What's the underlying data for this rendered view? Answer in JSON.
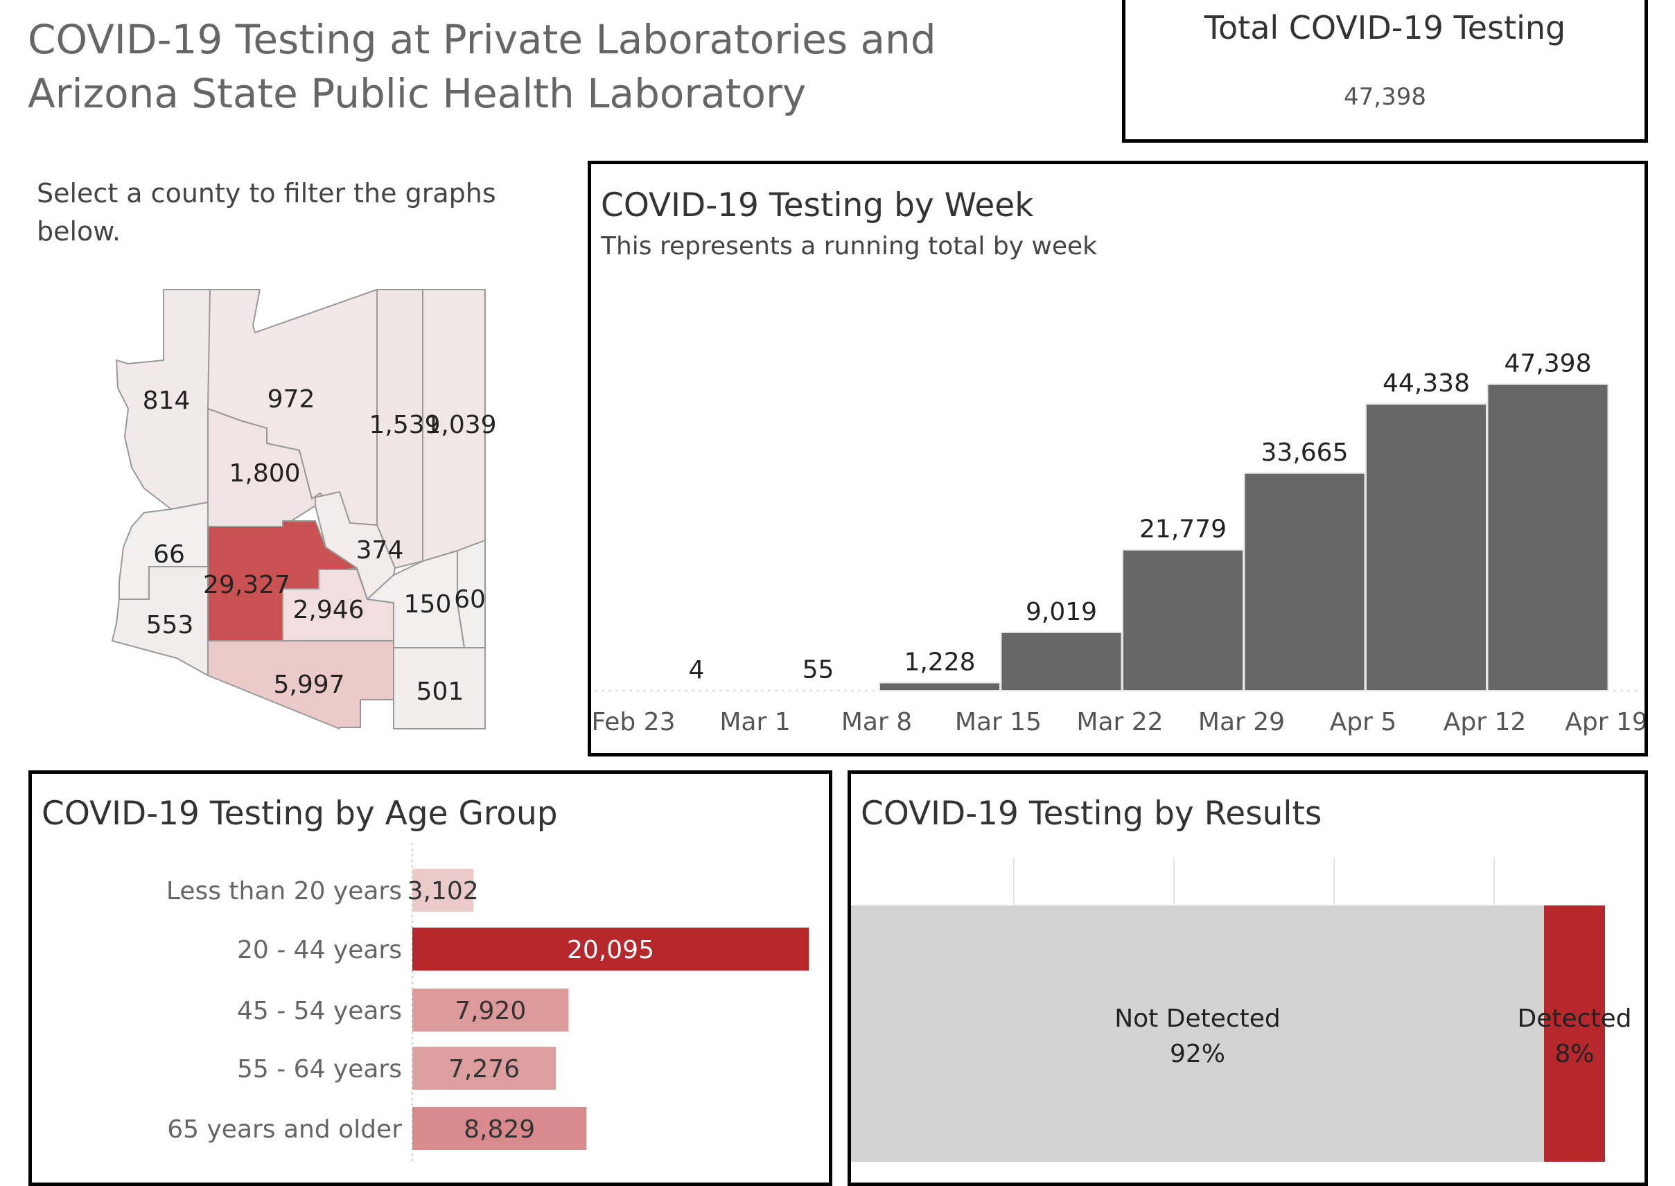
{
  "header": {
    "title": "COVID-19 Testing at Private Laboratories and Arizona State Public Health Laboratory"
  },
  "total": {
    "title": "Total COVID-19 Testing",
    "value": "47,398"
  },
  "map": {
    "instruction": "Select a county to filter the graphs below.",
    "counties": [
      {
        "value": "814",
        "color": "#f2eaea"
      },
      {
        "value": "972",
        "color": "#f1e7e7"
      },
      {
        "value": "1,539",
        "color": "#f1e6e6"
      },
      {
        "value": "1,039",
        "color": "#f1e7e7"
      },
      {
        "value": "1,800",
        "color": "#efe3e3"
      },
      {
        "value": "66",
        "color": "#f2efef"
      },
      {
        "value": "374",
        "color": "#f2ecec"
      },
      {
        "value": "29,327",
        "color": "#c95151"
      },
      {
        "value": "2,946",
        "color": "#f1dede"
      },
      {
        "value": "553",
        "color": "#f2eded"
      },
      {
        "value": "150",
        "color": "#f2efef"
      },
      {
        "value": "60",
        "color": "#f2efef"
      },
      {
        "value": "5,997",
        "color": "#ebcaca"
      },
      {
        "value": "501",
        "color": "#f2eeee"
      }
    ]
  },
  "chart_data": [
    {
      "type": "bar",
      "title": "COVID-19 Testing by Week",
      "subtitle": "This represents a running total by week",
      "categories": [
        "Feb 23",
        "Mar 1",
        "Mar 8",
        "Mar 15",
        "Mar 22",
        "Mar 29",
        "Apr 5",
        "Apr 12",
        "Apr 19"
      ],
      "bars": [
        {
          "week": "Feb 23",
          "value": 4,
          "label": "4"
        },
        {
          "week": "Mar 1",
          "value": 55,
          "label": "55"
        },
        {
          "week": "Mar 8",
          "value": 1228,
          "label": "1,228"
        },
        {
          "week": "Mar 15",
          "value": 9019,
          "label": "9,019"
        },
        {
          "week": "Mar 22",
          "value": 21779,
          "label": "21,779"
        },
        {
          "week": "Mar 29",
          "value": 33665,
          "label": "33,665"
        },
        {
          "week": "Apr 5",
          "value": 44338,
          "label": "44,338"
        },
        {
          "week": "Apr 12",
          "value": 47398,
          "label": "47,398"
        }
      ],
      "ylim": [
        0,
        50000
      ],
      "bar_color": "#666666",
      "grid": false
    },
    {
      "type": "bar",
      "orientation": "horizontal",
      "title": "COVID-19 Testing by Age Group",
      "categories": [
        "Less than 20 years",
        "20 - 44 years",
        "45 - 54 years",
        "55 - 64 years",
        "65 years and older"
      ],
      "values": [
        3102,
        20095,
        7920,
        7276,
        8829
      ],
      "labels": [
        "3,102",
        "20,095",
        "7,920",
        "7,276",
        "8,829"
      ],
      "colors": [
        "#ebcaca",
        "#b7282c",
        "#dc9a9a",
        "#dc9e9e",
        "#d98a8c"
      ],
      "label_colors": [
        "#333333",
        "#ffffff",
        "#333333",
        "#333333",
        "#333333"
      ]
    },
    {
      "type": "bar",
      "orientation": "stacked-100",
      "title": "COVID-19 Testing by Results",
      "segments": [
        {
          "name": "Not Detected",
          "percent": 92,
          "label": "92%",
          "color": "#d3d3d3"
        },
        {
          "name": "Detected",
          "percent": 8,
          "label": "8%",
          "color": "#b7282c"
        }
      ]
    }
  ]
}
